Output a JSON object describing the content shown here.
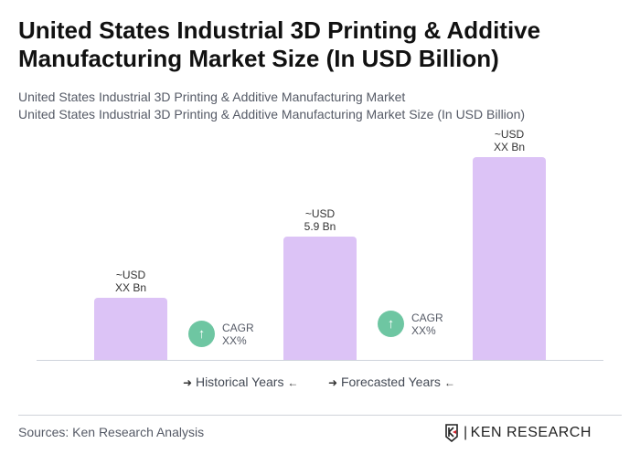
{
  "title": "United States Industrial 3D Printing & Additive Manufacturing Market Size (In USD Billion)",
  "subtitle1": "United States Industrial 3D Printing & Additive Manufacturing Market",
  "subtitle2": "United States Industrial 3D Printing & Additive Manufacturing Market Size (In USD Billion)",
  "chart_data": {
    "type": "bar",
    "values": [
      2.95,
      5.9,
      9.7
    ],
    "labels": [
      {
        "line1": "~USD",
        "line2": "XX Bn"
      },
      {
        "line1": "~USD",
        "line2": "5.9 Bn"
      },
      {
        "line1": "~USD",
        "line2": "XX Bn"
      }
    ],
    "bar_color": "#dcc3f6",
    "cagr": [
      {
        "label": "CAGR",
        "value": "XX%"
      },
      {
        "label": "CAGR",
        "value": "XX%"
      }
    ],
    "cagr_color": "#6ec6a2",
    "legend": [
      "Historical Years",
      "Forecasted Years"
    ]
  },
  "footer": {
    "source": "Sources: Ken Research Analysis",
    "logo_text": "KEN RESEARCH"
  }
}
